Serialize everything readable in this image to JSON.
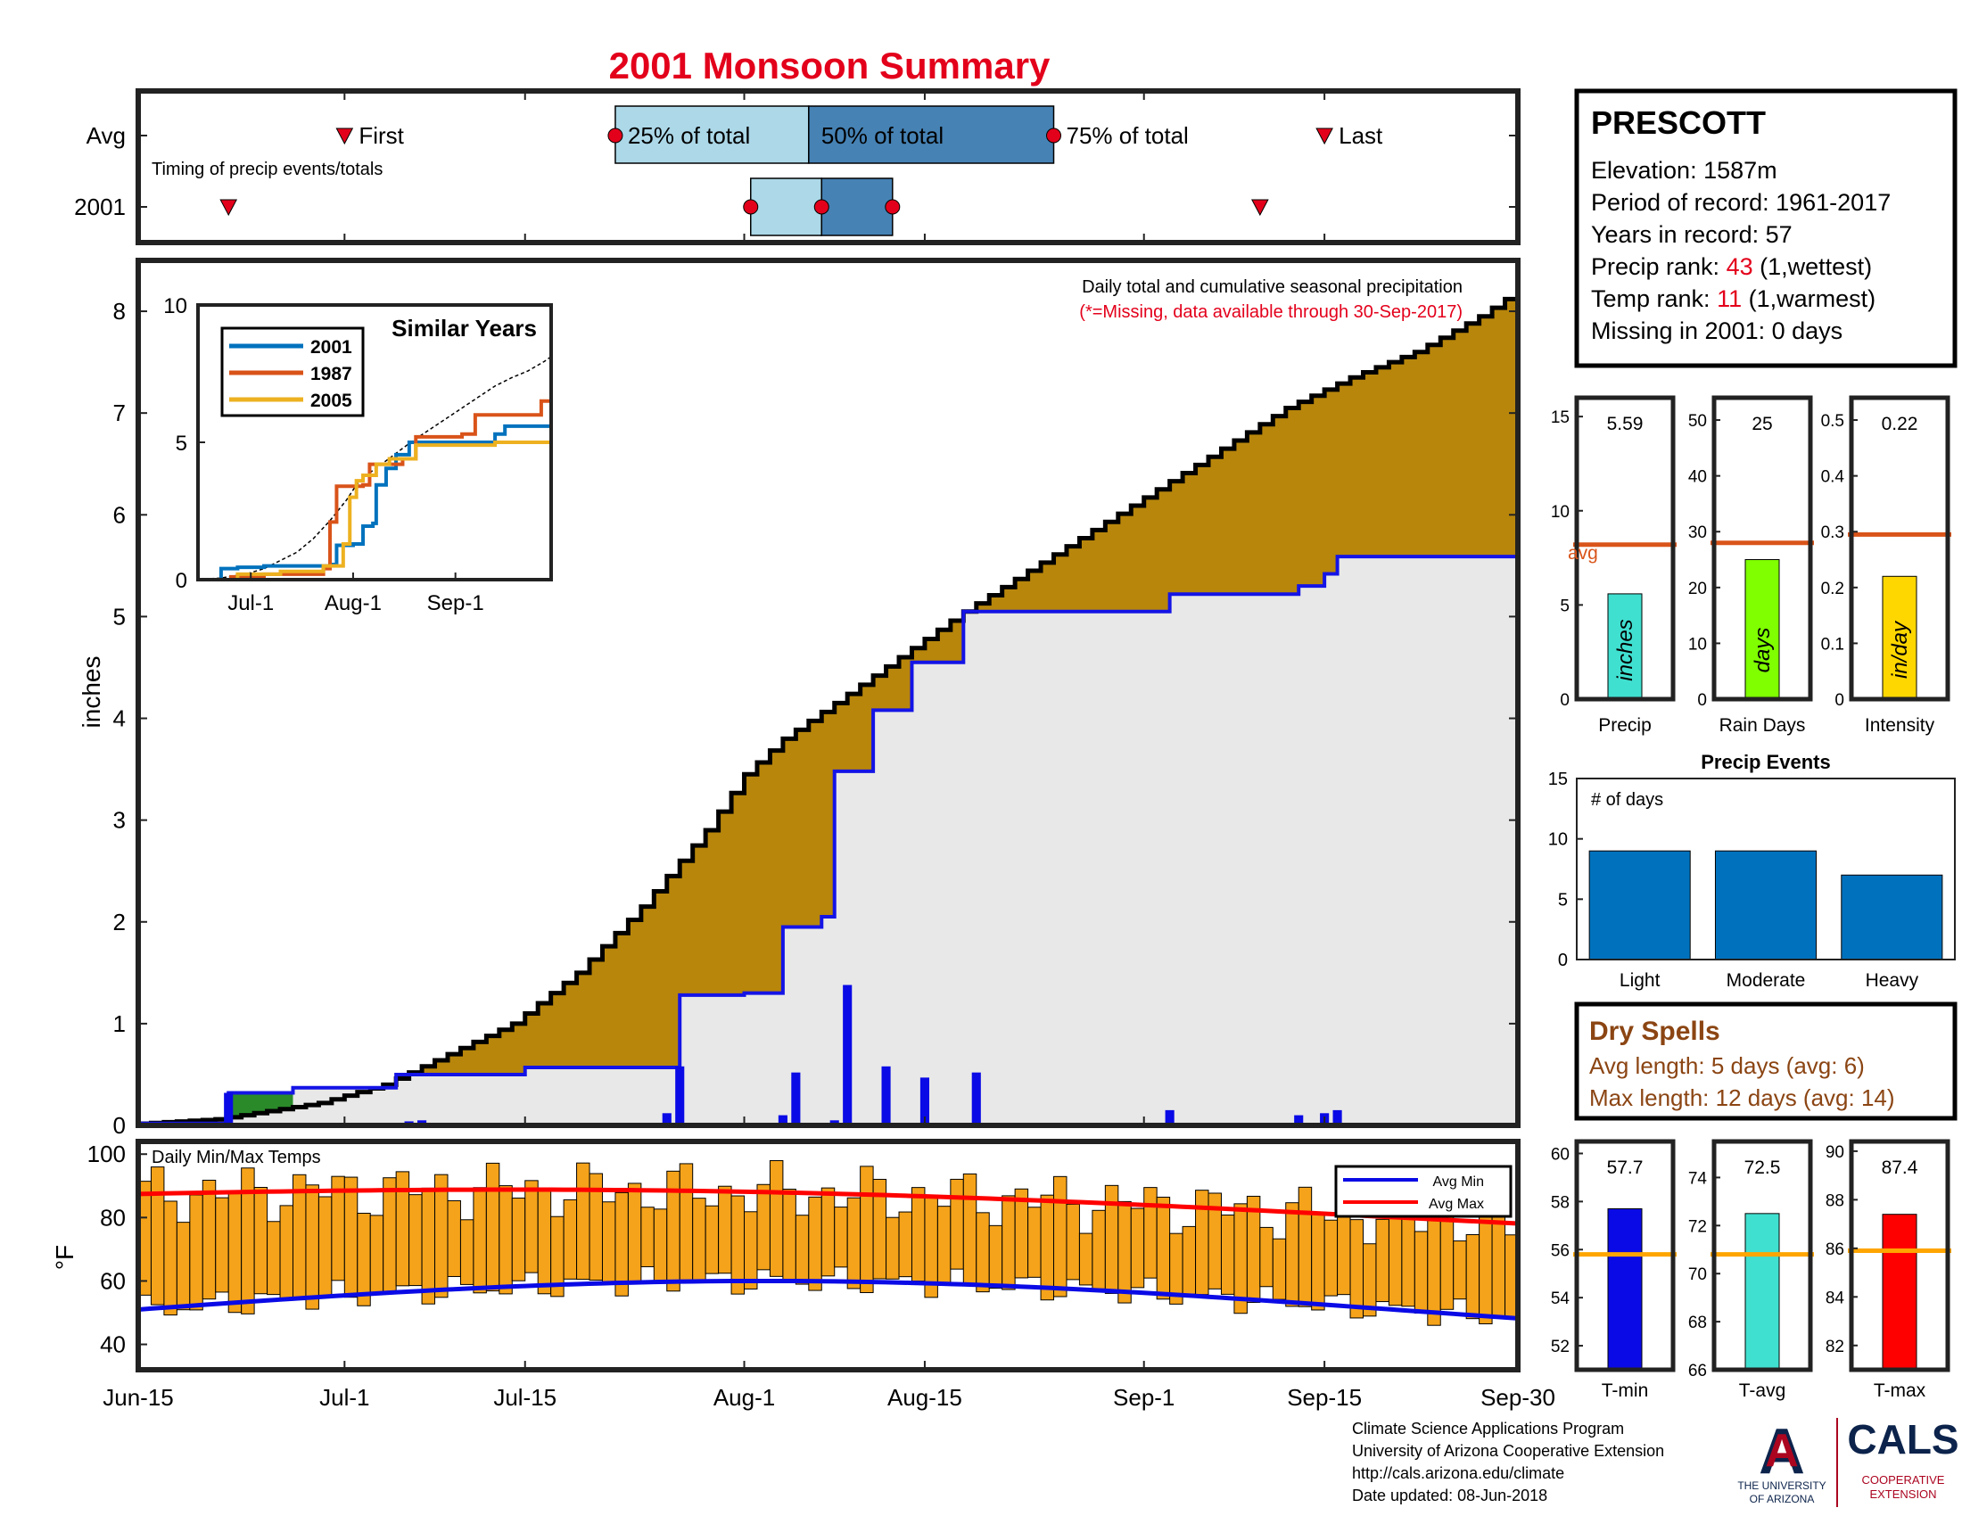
{
  "title": "2001 Monsoon Summary",
  "colors": {
    "title_red": "#e3001b",
    "cumulative_fill": "#b8860b",
    "avg_fill": "#e8e8e8",
    "avg_line": "#1414e6",
    "daily_bar": "#0a0ae6",
    "early_fill": "#2a8a2a",
    "timing_light": "#acd8e8",
    "timing_dark": "#4682b4",
    "avg_ref_line": "#d9541a",
    "temp_bar": "#f5a31a",
    "dry_spell_brown": "#8b4513",
    "ua_navy": "#0c234b",
    "ua_red": "#ab0520"
  },
  "timing": {
    "row_labels": [
      "Avg",
      "2001"
    ],
    "caption": "Timing of precip events/totals",
    "avg_markers": [
      "First",
      "25% of total",
      "50% of total",
      "75% of total",
      "Last"
    ],
    "x_positions_days_from_jun15": {
      "avg": {
        "first": 16,
        "p25": 37,
        "p50": 52,
        "p75": 71,
        "last": 92
      },
      "y2001": {
        "first": 7,
        "p25": 47.5,
        "p50": 53,
        "p75": 58.5,
        "last": 87
      }
    }
  },
  "station": {
    "name": "PRESCOTT",
    "elevation": "Elevation: 1587m",
    "period": "Period of record: 1961-2017",
    "years": "Years in record: 57",
    "precip_rank_label": "Precip rank: ",
    "precip_rank_value": "43",
    "precip_rank_note": " (1,wettest)",
    "temp_rank_label": "Temp rank: ",
    "temp_rank_value": "11",
    "temp_rank_note": " (1,warmest)",
    "missing": "Missing in 2001: 0 days"
  },
  "stats": [
    {
      "label": "Precip",
      "unit": "inches",
      "value": 5.59,
      "value_text": "5.59",
      "avg": 8.2,
      "ymax": 16,
      "ticks": [
        "0",
        "5",
        "10",
        "15"
      ],
      "tick_vals": [
        0,
        5,
        10,
        15
      ],
      "color": "#40e0d0",
      "avg_text": "avg"
    },
    {
      "label": "Rain Days",
      "unit": "days",
      "value": 25,
      "value_text": "25",
      "avg": 28,
      "ymax": 54,
      "ticks": [
        "0",
        "10",
        "20",
        "30",
        "40",
        "50"
      ],
      "tick_vals": [
        0,
        10,
        20,
        30,
        40,
        50
      ],
      "color": "#7fff00",
      "avg_text": ""
    },
    {
      "label": "Intensity",
      "unit": "in/day",
      "value": 0.22,
      "value_text": "0.22",
      "avg": 0.295,
      "ymax": 0.54,
      "ticks": [
        "0",
        "0.1",
        "0.2",
        "0.3",
        "0.4",
        "0.5"
      ],
      "tick_vals": [
        0,
        0.1,
        0.2,
        0.3,
        0.4,
        0.5
      ],
      "color": "#ffd700",
      "avg_text": ""
    }
  ],
  "precip_events": {
    "title": "Precip Events",
    "ylabel_inside": "# of days",
    "categories": [
      "Light",
      "Moderate",
      "Heavy"
    ],
    "values": [
      9,
      9,
      7
    ],
    "ylim": [
      0,
      15
    ],
    "ticks": [
      "0",
      "5",
      "10",
      "15"
    ]
  },
  "dry_spells": {
    "title": "Dry Spells",
    "avg_length": "Avg length: 5 days (avg: 6)",
    "max_length": "Max length: 12 days (avg: 14)"
  },
  "temp_stats": [
    {
      "label": "T-min",
      "value": 57.7,
      "value_text": "57.7",
      "avg": 55.8,
      "ylim": [
        51,
        60.5
      ],
      "ticks": [
        "52",
        "54",
        "56",
        "58",
        "60"
      ],
      "tick_vals": [
        52,
        54,
        56,
        58,
        60
      ],
      "color": "#0a0ae6"
    },
    {
      "label": "T-avg",
      "value": 72.5,
      "value_text": "72.5",
      "avg": 70.8,
      "ylim": [
        66,
        75.5
      ],
      "ticks": [
        "66",
        "68",
        "70",
        "72",
        "74"
      ],
      "tick_vals": [
        66,
        68,
        70,
        72,
        74
      ],
      "color": "#40e0d0"
    },
    {
      "label": "T-max",
      "value": 87.4,
      "value_text": "87.4",
      "avg": 85.9,
      "ylim": [
        81,
        90.4
      ],
      "ticks": [
        "82",
        "84",
        "86",
        "88",
        "90"
      ],
      "tick_vals": [
        82,
        84,
        86,
        88,
        90
      ],
      "color": "#ff0000"
    }
  ],
  "footer": {
    "lines": [
      "Climate Science Applications Program",
      "University of Arizona Cooperative Extension",
      "http://cals.arizona.edu/climate",
      " Date updated: 08-Jun-2018"
    ],
    "ua_text_1": "THE UNIVERSITY",
    "ua_text_2": "OF ARIZONA",
    "cals": "CALS",
    "cals_sub_1": "COOPERATIVE",
    "cals_sub_2": "EXTENSION"
  },
  "chart_data": [
    {
      "type": "area",
      "title": "Daily total and cumulative seasonal precipitation",
      "subtitle": "(*=Missing, data available through 30-Sep-2017)",
      "ylabel": "inches",
      "ylim": [
        0,
        8.5
      ],
      "yticks": [
        0,
        1,
        2,
        3,
        4,
        5,
        6,
        7,
        8
      ],
      "xtick_labels": [
        "Jun-15",
        "Jul-1",
        "Jul-15",
        "Aug-1",
        "Aug-15",
        "Sep-1",
        "Sep-15",
        "Sep-30"
      ],
      "xtick_days": [
        0,
        16,
        30,
        47,
        61,
        78,
        92,
        107
      ],
      "cumulative_avg_points": [
        [
          0,
          0.01
        ],
        [
          7,
          0.06
        ],
        [
          10,
          0.12
        ],
        [
          15,
          0.22
        ],
        [
          20,
          0.4
        ],
        [
          25,
          0.7
        ],
        [
          30,
          1.0
        ],
        [
          35,
          1.5
        ],
        [
          40,
          2.15
        ],
        [
          45,
          2.9
        ],
        [
          48,
          3.45
        ],
        [
          51,
          3.8
        ],
        [
          55,
          4.15
        ],
        [
          60,
          4.6
        ],
        [
          65,
          5.05
        ],
        [
          70,
          5.45
        ],
        [
          75,
          5.85
        ],
        [
          80,
          6.25
        ],
        [
          85,
          6.65
        ],
        [
          90,
          7.05
        ],
        [
          95,
          7.35
        ],
        [
          100,
          7.6
        ],
        [
          105,
          7.95
        ],
        [
          107,
          8.12
        ]
      ],
      "cumulative_2001_steps": [
        [
          0,
          0.02
        ],
        [
          7,
          0.32
        ],
        [
          12,
          0.37
        ],
        [
          20,
          0.5
        ],
        [
          30,
          0.57
        ],
        [
          41,
          0.57
        ],
        [
          42,
          1.28
        ],
        [
          47,
          1.3
        ],
        [
          50,
          1.95
        ],
        [
          53,
          2.05
        ],
        [
          54,
          3.48
        ],
        [
          57,
          4.08
        ],
        [
          60,
          4.55
        ],
        [
          64,
          5.05
        ],
        [
          80,
          5.22
        ],
        [
          90,
          5.3
        ],
        [
          92,
          5.42
        ],
        [
          93,
          5.59
        ],
        [
          107,
          5.59
        ]
      ],
      "daily_2001": [
        [
          7,
          0.32
        ],
        [
          21,
          0.04
        ],
        [
          22,
          0.05
        ],
        [
          30,
          0.02
        ],
        [
          41,
          0.12
        ],
        [
          42,
          0.58
        ],
        [
          50,
          0.1
        ],
        [
          51,
          0.52
        ],
        [
          54,
          0.05
        ],
        [
          55,
          1.38
        ],
        [
          58,
          0.58
        ],
        [
          61,
          0.47
        ],
        [
          65,
          0.52
        ],
        [
          78,
          0.02
        ],
        [
          80,
          0.15
        ],
        [
          90,
          0.1
        ],
        [
          92,
          0.12
        ],
        [
          93,
          0.15
        ]
      ]
    },
    {
      "type": "line",
      "title": "Similar Years",
      "series_names": [
        "2001",
        "1987",
        "2005"
      ],
      "series_colors": [
        "#0072bd",
        "#d95319",
        "#edb120"
      ],
      "ylim": [
        0,
        10
      ],
      "yticks": [
        0,
        5,
        10
      ],
      "xtick_labels": [
        "Jul-1",
        "Aug-1",
        "Sep-1"
      ]
    },
    {
      "type": "bar",
      "title": "Daily Min/Max Temps",
      "ylabel": "°F",
      "ylim": [
        32,
        104
      ],
      "yticks": [
        40,
        60,
        80,
        100
      ],
      "legend": [
        "Avg Min",
        "Avg Max"
      ]
    }
  ]
}
